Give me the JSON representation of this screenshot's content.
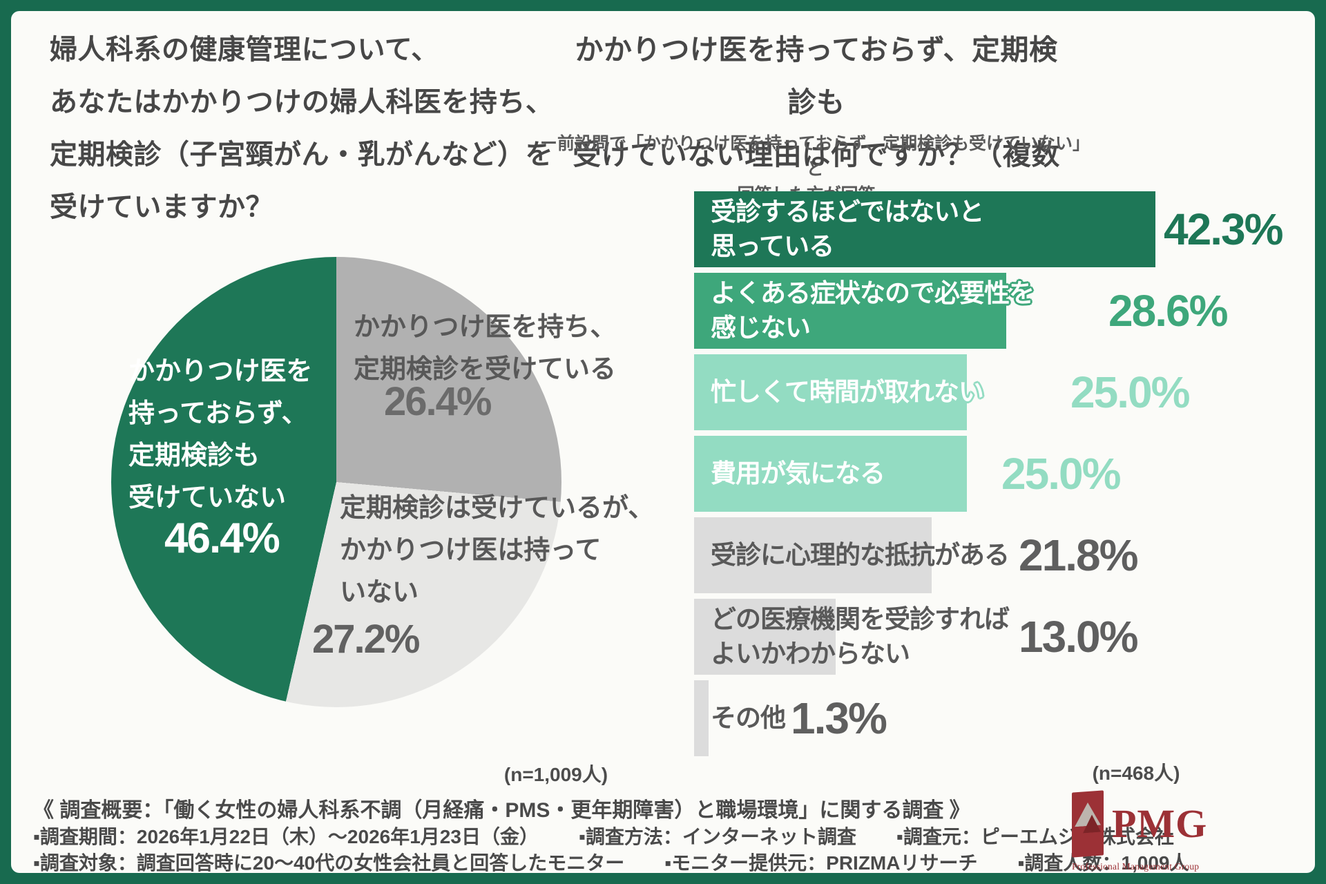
{
  "frame": {
    "border_color": "#186a4f",
    "panel_background": "#fbfbf8"
  },
  "left_chart": {
    "title": "婦人科系の健康管理について、\nあなたはかかりつけの婦人科医を持ち、\n定期検診（子宮頸がん・乳がんなど）を\n受けていますか？",
    "n_label": "(n=1,009人)",
    "labels": {
      "green": "かかりつけ医を\n持っておらず、\n定期検診も\n受けていない",
      "gray": "かかりつけ医を持ち、\n定期検診を受けている",
      "lightgray": "定期検診は受けているが、\nかかりつけ医は持って\nいない"
    }
  },
  "right_chart": {
    "title": "かかりつけ医を持っておらず、定期検診も\n受けていない理由は何ですか？（複数回答可）",
    "subtitle": "ー前設問で「かかりつけ医を持っておらず、定期検診も受けていない」と\n回答した方が回答ー",
    "n_label": "(n=468人)",
    "bar_labels": [
      "受診するほどではないと\n思っている",
      "よくある症状なので必要性を\n感じない",
      "忙しくて時間が取れない",
      "費用が気になる",
      "受診に心理的な抵抗がある",
      "どの医療機関を受診すれば\nよいかわからない",
      "その他"
    ]
  },
  "footer": {
    "overview": "《 調査概要：「働く女性の婦人科系不調（月経痛・PMS・更年期障害）と職場環境」に関する調査 》",
    "line2": [
      "▪調査期間：2026年1月22日（木）～2026年1月23日（金）",
      "▪調査方法：インターネット調査",
      "▪調査元：ピーエムジー株式会社"
    ],
    "line3": [
      "▪調査対象：調査回答時に20～40代の女性会社員と回答したモニター",
      "▪モニター提供元：PRIZMAリサーチ",
      "▪調査人数：1,009人"
    ]
  },
  "logo": {
    "name": "PMG",
    "subtitle": "Professional Management Group",
    "color": "#9c3136"
  },
  "chart_data": [
    {
      "type": "pie",
      "title": "婦人科系の健康管理について、あなたはかかりつけの婦人科医を持ち、定期検診（子宮頸がん・乳がんなど）を受けていますか？",
      "n": 1009,
      "clockwise_from_top": true,
      "segments": [
        {
          "label": "かかりつけ医を持ち、定期検診を受けている",
          "value": 26.4,
          "color": "#b1b1b1"
        },
        {
          "label": "定期検診は受けているが、かかりつけ医は持っていない",
          "value": 27.2,
          "color": "#e7e7e5"
        },
        {
          "label": "かかりつけ医を持っておらず、定期検診も受けていない",
          "value": 46.4,
          "color": "#1e7757"
        }
      ]
    },
    {
      "type": "bar",
      "orientation": "horizontal",
      "title": "かかりつけ医を持っておらず、定期検診も受けていない理由は何ですか？（複数回答可）",
      "subtitle": "前設問で「かかりつけ医を持っておらず、定期検診も受けていない」と回答した方が回答",
      "n": 468,
      "xlim": [
        0,
        45
      ],
      "categories": [
        "受診するほどではないと思っている",
        "よくある症状なので必要性を感じない",
        "忙しくて時間が取れない",
        "費用が気になる",
        "受診に心理的な抵抗がある",
        "どの医療機関を受診すればよいかわからない",
        "その他"
      ],
      "values": [
        42.3,
        28.6,
        25.0,
        25.0,
        21.8,
        13.0,
        1.3
      ],
      "bar_colors": [
        "#1e7757",
        "#3ea77b",
        "#93dcc2",
        "#93dcc2",
        "#dcdcdc",
        "#dcdcdc",
        "#dcdcdc"
      ],
      "value_colors": [
        "#1e7757",
        "#3ea77b",
        "#93dcc2",
        "#93dcc2",
        "#5f5f5f",
        "#5f5f5f",
        "#5f5f5f"
      ],
      "label_colors": [
        "#ffffff",
        "#ffffff",
        "#ffffff",
        "#ffffff",
        "#595959",
        "#595959",
        "#595959"
      ]
    }
  ]
}
